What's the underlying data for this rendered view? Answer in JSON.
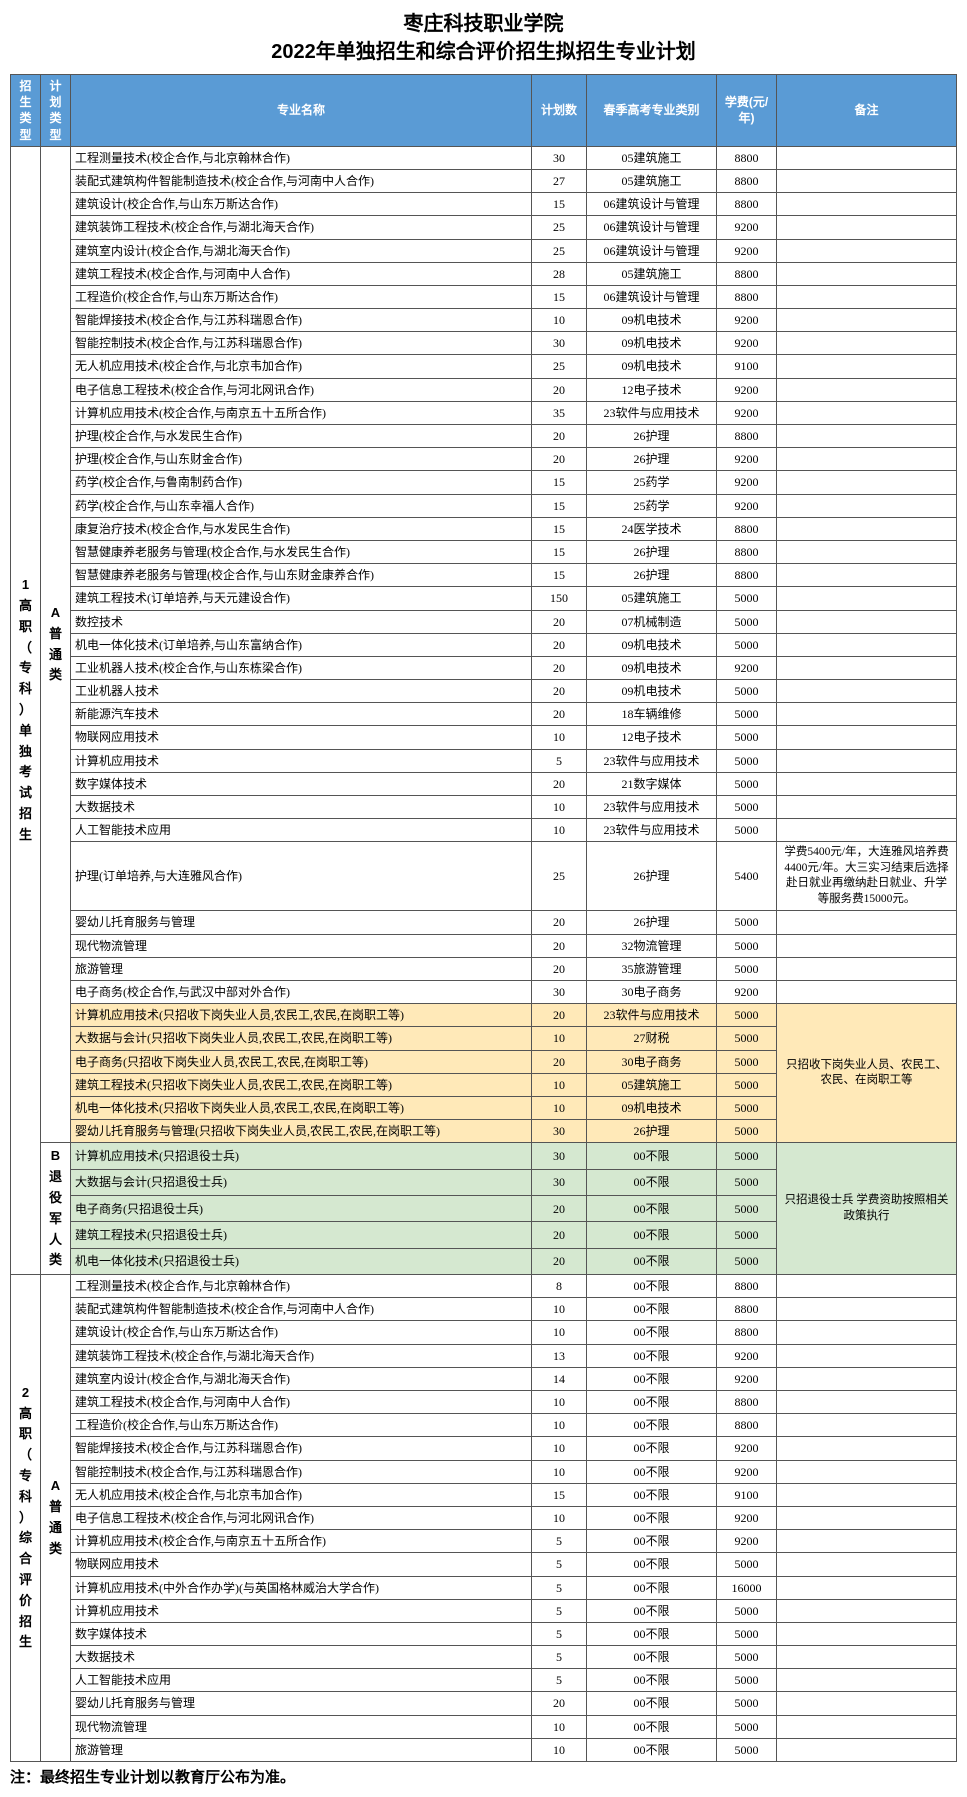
{
  "title_line1": "枣庄科技职业学院",
  "title_line2": "2022年单独招生和综合评价招生拟招生专业计划",
  "headers": {
    "enroll": "招生类型",
    "plan": "计划类型",
    "major": "专业名称",
    "count": "计划数",
    "cat": "春季高考专业类别",
    "fee": "学费(元/年)",
    "note": "备注"
  },
  "enroll_types": {
    "t1": "1高职（专科）单独考试招生",
    "t2": "2高职（专科）综合评价招生"
  },
  "plan_types": {
    "A": "A普通类",
    "B": "B退役军人类"
  },
  "group_notes": {
    "yellow": "只招收下岗失业人员、农民工、农民、在岗职工等",
    "green": "只招退役士兵 学费资助按照相关政策执行"
  },
  "footer": "注：最终招生专业计划以教育厅公布为准。",
  "rows": [
    {
      "g": "1A",
      "m": "工程测量技术(校企合作,与北京翰林合作)",
      "c": 30,
      "k": "05建筑施工",
      "f": 8800
    },
    {
      "g": "1A",
      "m": "装配式建筑构件智能制造技术(校企合作,与河南中人合作)",
      "c": 27,
      "k": "05建筑施工",
      "f": 8800
    },
    {
      "g": "1A",
      "m": "建筑设计(校企合作,与山东万斯达合作)",
      "c": 15,
      "k": "06建筑设计与管理",
      "f": 8800
    },
    {
      "g": "1A",
      "m": "建筑装饰工程技术(校企合作,与湖北海天合作)",
      "c": 25,
      "k": "06建筑设计与管理",
      "f": 9200
    },
    {
      "g": "1A",
      "m": "建筑室内设计(校企合作,与湖北海天合作)",
      "c": 25,
      "k": "06建筑设计与管理",
      "f": 9200
    },
    {
      "g": "1A",
      "m": "建筑工程技术(校企合作,与河南中人合作)",
      "c": 28,
      "k": "05建筑施工",
      "f": 8800
    },
    {
      "g": "1A",
      "m": "工程造价(校企合作,与山东万斯达合作)",
      "c": 15,
      "k": "06建筑设计与管理",
      "f": 8800
    },
    {
      "g": "1A",
      "m": "智能焊接技术(校企合作,与江苏科瑞恩合作)",
      "c": 10,
      "k": "09机电技术",
      "f": 9200
    },
    {
      "g": "1A",
      "m": "智能控制技术(校企合作,与江苏科瑞恩合作)",
      "c": 30,
      "k": "09机电技术",
      "f": 9200
    },
    {
      "g": "1A",
      "m": "无人机应用技术(校企合作,与北京韦加合作)",
      "c": 25,
      "k": "09机电技术",
      "f": 9100
    },
    {
      "g": "1A",
      "m": "电子信息工程技术(校企合作,与河北网讯合作)",
      "c": 20,
      "k": "12电子技术",
      "f": 9200
    },
    {
      "g": "1A",
      "m": "计算机应用技术(校企合作,与南京五十五所合作)",
      "c": 35,
      "k": "23软件与应用技术",
      "f": 9200
    },
    {
      "g": "1A",
      "m": "护理(校企合作,与水发民生合作)",
      "c": 20,
      "k": "26护理",
      "f": 8800
    },
    {
      "g": "1A",
      "m": "护理(校企合作,与山东财金合作)",
      "c": 20,
      "k": "26护理",
      "f": 9200
    },
    {
      "g": "1A",
      "m": "药学(校企合作,与鲁南制药合作)",
      "c": 15,
      "k": "25药学",
      "f": 9200
    },
    {
      "g": "1A",
      "m": "药学(校企合作,与山东幸福人合作)",
      "c": 15,
      "k": "25药学",
      "f": 9200
    },
    {
      "g": "1A",
      "m": "康复治疗技术(校企合作,与水发民生合作)",
      "c": 15,
      "k": "24医学技术",
      "f": 8800
    },
    {
      "g": "1A",
      "m": "智慧健康养老服务与管理(校企合作,与水发民生合作)",
      "c": 15,
      "k": "26护理",
      "f": 8800
    },
    {
      "g": "1A",
      "m": "智慧健康养老服务与管理(校企合作,与山东财金康养合作)",
      "c": 15,
      "k": "26护理",
      "f": 8800
    },
    {
      "g": "1A",
      "m": "建筑工程技术(订单培养,与天元建设合作)",
      "c": 150,
      "k": "05建筑施工",
      "f": 5000
    },
    {
      "g": "1A",
      "m": "数控技术",
      "c": 20,
      "k": "07机械制造",
      "f": 5000
    },
    {
      "g": "1A",
      "m": "机电一体化技术(订单培养,与山东富纳合作)",
      "c": 20,
      "k": "09机电技术",
      "f": 5000
    },
    {
      "g": "1A",
      "m": "工业机器人技术(校企合作,与山东栋梁合作)",
      "c": 20,
      "k": "09机电技术",
      "f": 9200
    },
    {
      "g": "1A",
      "m": "工业机器人技术",
      "c": 20,
      "k": "09机电技术",
      "f": 5000
    },
    {
      "g": "1A",
      "m": "新能源汽车技术",
      "c": 20,
      "k": "18车辆维修",
      "f": 5000
    },
    {
      "g": "1A",
      "m": "物联网应用技术",
      "c": 10,
      "k": "12电子技术",
      "f": 5000
    },
    {
      "g": "1A",
      "m": "计算机应用技术",
      "c": 5,
      "k": "23软件与应用技术",
      "f": 5000
    },
    {
      "g": "1A",
      "m": "数字媒体技术",
      "c": 20,
      "k": "21数字媒体",
      "f": 5000
    },
    {
      "g": "1A",
      "m": "大数据技术",
      "c": 10,
      "k": "23软件与应用技术",
      "f": 5000
    },
    {
      "g": "1A",
      "m": "人工智能技术应用",
      "c": 10,
      "k": "23软件与应用技术",
      "f": 5000
    },
    {
      "g": "1A",
      "m": "护理(订单培养,与大连雅风合作)",
      "c": 25,
      "k": "26护理",
      "f": 5400,
      "note": "学费5400元/年，大连雅风培养费4400元/年。大三实习结束后选择赴日就业再缴纳赴日就业、升学等服务费15000元。"
    },
    {
      "g": "1A",
      "m": "婴幼儿托育服务与管理",
      "c": 20,
      "k": "26护理",
      "f": 5000
    },
    {
      "g": "1A",
      "m": "现代物流管理",
      "c": 20,
      "k": "32物流管理",
      "f": 5000
    },
    {
      "g": "1A",
      "m": "旅游管理",
      "c": 20,
      "k": "35旅游管理",
      "f": 5000
    },
    {
      "g": "1A",
      "m": "电子商务(校企合作,与武汉中部对外合作)",
      "c": 30,
      "k": "30电子商务",
      "f": 9200
    },
    {
      "g": "1A",
      "cls": "yellow",
      "m": "计算机应用技术(只招收下岗失业人员,农民工,农民,在岗职工等)",
      "c": 20,
      "k": "23软件与应用技术",
      "f": 5000
    },
    {
      "g": "1A",
      "cls": "yellow",
      "m": "大数据与会计(只招收下岗失业人员,农民工,农民,在岗职工等)",
      "c": 10,
      "k": "27财税",
      "f": 5000
    },
    {
      "g": "1A",
      "cls": "yellow",
      "m": "电子商务(只招收下岗失业人员,农民工,农民,在岗职工等)",
      "c": 20,
      "k": "30电子商务",
      "f": 5000
    },
    {
      "g": "1A",
      "cls": "yellow",
      "m": "建筑工程技术(只招收下岗失业人员,农民工,农民,在岗职工等)",
      "c": 10,
      "k": "05建筑施工",
      "f": 5000
    },
    {
      "g": "1A",
      "cls": "yellow",
      "m": "机电一体化技术(只招收下岗失业人员,农民工,农民,在岗职工等)",
      "c": 10,
      "k": "09机电技术",
      "f": 5000
    },
    {
      "g": "1A",
      "cls": "yellow",
      "m": "婴幼儿托育服务与管理(只招收下岗失业人员,农民工,农民,在岗职工等)",
      "c": 30,
      "k": "26护理",
      "f": 5000
    },
    {
      "g": "1B",
      "cls": "green",
      "m": "计算机应用技术(只招退役士兵)",
      "c": 30,
      "k": "00不限",
      "f": 5000
    },
    {
      "g": "1B",
      "cls": "green",
      "m": "大数据与会计(只招退役士兵)",
      "c": 30,
      "k": "00不限",
      "f": 5000
    },
    {
      "g": "1B",
      "cls": "green",
      "m": "电子商务(只招退役士兵)",
      "c": 20,
      "k": "00不限",
      "f": 5000
    },
    {
      "g": "1B",
      "cls": "green",
      "m": "建筑工程技术(只招退役士兵)",
      "c": 20,
      "k": "00不限",
      "f": 5000
    },
    {
      "g": "1B",
      "cls": "green",
      "m": "机电一体化技术(只招退役士兵)",
      "c": 20,
      "k": "00不限",
      "f": 5000
    },
    {
      "g": "2A",
      "m": "工程测量技术(校企合作,与北京翰林合作)",
      "c": 8,
      "k": "00不限",
      "f": 8800
    },
    {
      "g": "2A",
      "m": "装配式建筑构件智能制造技术(校企合作,与河南中人合作)",
      "c": 10,
      "k": "00不限",
      "f": 8800
    },
    {
      "g": "2A",
      "m": "建筑设计(校企合作,与山东万斯达合作)",
      "c": 10,
      "k": "00不限",
      "f": 8800
    },
    {
      "g": "2A",
      "m": "建筑装饰工程技术(校企合作,与湖北海天合作)",
      "c": 13,
      "k": "00不限",
      "f": 9200
    },
    {
      "g": "2A",
      "m": "建筑室内设计(校企合作,与湖北海天合作)",
      "c": 14,
      "k": "00不限",
      "f": 9200
    },
    {
      "g": "2A",
      "m": "建筑工程技术(校企合作,与河南中人合作)",
      "c": 10,
      "k": "00不限",
      "f": 8800
    },
    {
      "g": "2A",
      "m": "工程造价(校企合作,与山东万斯达合作)",
      "c": 10,
      "k": "00不限",
      "f": 8800
    },
    {
      "g": "2A",
      "m": "智能焊接技术(校企合作,与江苏科瑞恩合作)",
      "c": 10,
      "k": "00不限",
      "f": 9200
    },
    {
      "g": "2A",
      "m": "智能控制技术(校企合作,与江苏科瑞恩合作)",
      "c": 10,
      "k": "00不限",
      "f": 9200
    },
    {
      "g": "2A",
      "m": "无人机应用技术(校企合作,与北京韦加合作)",
      "c": 15,
      "k": "00不限",
      "f": 9100
    },
    {
      "g": "2A",
      "m": "电子信息工程技术(校企合作,与河北网讯合作)",
      "c": 10,
      "k": "00不限",
      "f": 9200
    },
    {
      "g": "2A",
      "m": "计算机应用技术(校企合作,与南京五十五所合作)",
      "c": 5,
      "k": "00不限",
      "f": 9200
    },
    {
      "g": "2A",
      "m": "物联网应用技术",
      "c": 5,
      "k": "00不限",
      "f": 5000
    },
    {
      "g": "2A",
      "m": "计算机应用技术(中外合作办学)(与英国格林威治大学合作)",
      "c": 5,
      "k": "00不限",
      "f": 16000
    },
    {
      "g": "2A",
      "m": "计算机应用技术",
      "c": 5,
      "k": "00不限",
      "f": 5000
    },
    {
      "g": "2A",
      "m": "数字媒体技术",
      "c": 5,
      "k": "00不限",
      "f": 5000
    },
    {
      "g": "2A",
      "m": "大数据技术",
      "c": 5,
      "k": "00不限",
      "f": 5000
    },
    {
      "g": "2A",
      "m": "人工智能技术应用",
      "c": 5,
      "k": "00不限",
      "f": 5000
    },
    {
      "g": "2A",
      "m": "婴幼儿托育服务与管理",
      "c": 20,
      "k": "00不限",
      "f": 5000
    },
    {
      "g": "2A",
      "m": "现代物流管理",
      "c": 10,
      "k": "00不限",
      "f": 5000
    },
    {
      "g": "2A",
      "m": "旅游管理",
      "c": 10,
      "k": "00不限",
      "f": 5000
    }
  ]
}
